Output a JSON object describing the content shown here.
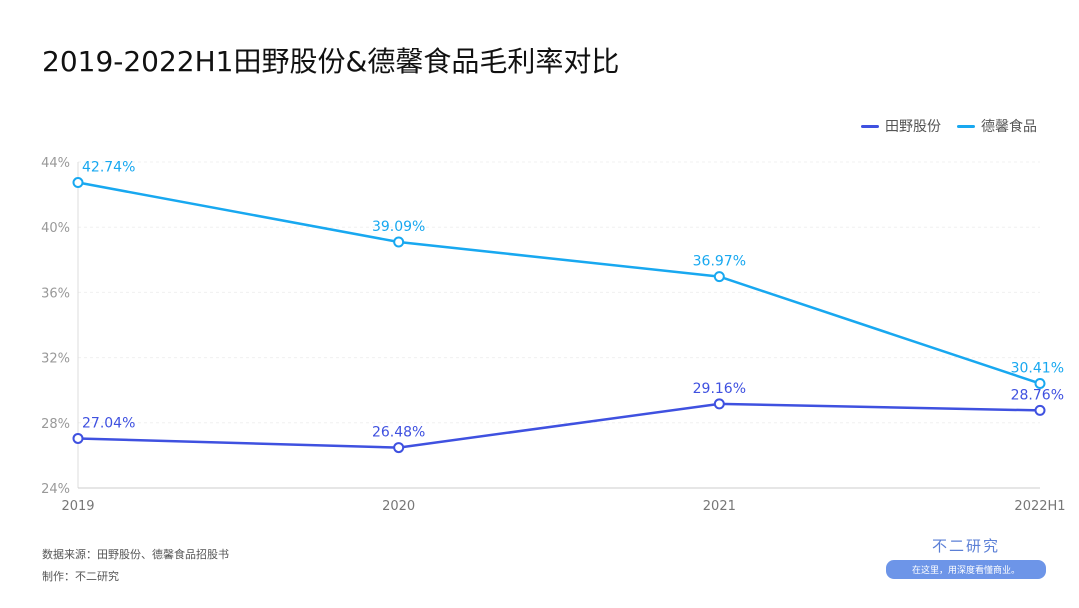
{
  "title": "2019-2022H1田野股份&德馨食品毛利率对比",
  "source": "数据来源：田野股份、德馨食品招股书",
  "author": "制作：不二研究",
  "logo": {
    "name": "不二研究",
    "tagline": "在这里，用深度看懂商业。"
  },
  "watermark": "@不二研究",
  "chart_data": {
    "type": "line",
    "title": "2019-2022H1田野股份&德馨食品毛利率对比",
    "categories": [
      "2019",
      "2020",
      "2021",
      "2022H1"
    ],
    "yticks": [
      "24%",
      "28%",
      "32%",
      "36%",
      "40%",
      "44%"
    ],
    "ylim": [
      24,
      44
    ],
    "legend_position": "top-right",
    "series": [
      {
        "name": "田野股份",
        "color": "#3f51e0",
        "values": [
          27.04,
          26.48,
          29.16,
          28.76
        ],
        "labels": [
          "27.04%",
          "26.48%",
          "29.16%",
          "28.76%"
        ]
      },
      {
        "name": "德馨食品",
        "color": "#18a8f0",
        "values": [
          42.74,
          39.09,
          36.97,
          30.41
        ],
        "labels": [
          "42.74%",
          "39.09%",
          "36.97%",
          "30.41%"
        ]
      }
    ]
  }
}
